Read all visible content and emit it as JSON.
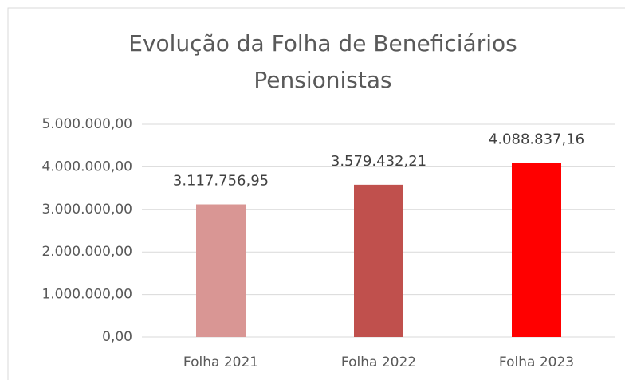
{
  "chart_data": {
    "type": "bar",
    "title": "Evolução da Folha de Beneficiários Pensionistas",
    "categories": [
      "Folha 2021",
      "Folha 2022",
      "Folha 2023"
    ],
    "values": [
      3117756.95,
      3579432.21,
      4088837.16
    ],
    "value_labels": [
      "3.117.756,95",
      "3.579.432,21",
      "4.088.837,16"
    ],
    "colors": [
      "#d99694",
      "#c0504d",
      "#ff0000"
    ],
    "ylim": [
      0,
      5000000
    ],
    "yticks": [
      {
        "value": 0,
        "label": "0,00"
      },
      {
        "value": 1000000,
        "label": "1.000.000,00"
      },
      {
        "value": 2000000,
        "label": "2.000.000,00"
      },
      {
        "value": 3000000,
        "label": "3.000.000,00"
      },
      {
        "value": 4000000,
        "label": "4.000.000,00"
      },
      {
        "value": 5000000,
        "label": "5.000.000,00"
      }
    ],
    "grid": true
  }
}
